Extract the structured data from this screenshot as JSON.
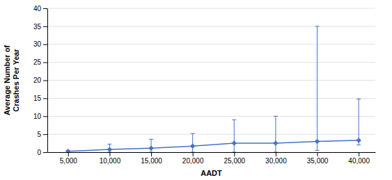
{
  "chart_data": {
    "type": "line",
    "xlabel": "AADT",
    "ylabel": "Average Number of\nCrashes Per Year",
    "x": [
      5000,
      10000,
      15000,
      20000,
      25000,
      30000,
      35000,
      40000
    ],
    "values": [
      0.25,
      0.75,
      1.1,
      1.7,
      2.5,
      2.5,
      3.0,
      3.3
    ],
    "yerr_lower": [
      0.25,
      0.75,
      1.1,
      1.7,
      2.5,
      2.5,
      2.5,
      1.3
    ],
    "yerr_upper": [
      0.25,
      1.5,
      2.5,
      3.5,
      6.5,
      7.5,
      32.0,
      11.5
    ],
    "color": "#4472C4",
    "marker": "diamond",
    "line_style": "solid",
    "xlim": [
      2500,
      42000
    ],
    "ylim": [
      0,
      40
    ],
    "xticks": [
      {
        "value": 5000,
        "label": "5,000"
      },
      {
        "value": 10000,
        "label": "10,000"
      },
      {
        "value": 15000,
        "label": "15,000"
      },
      {
        "value": 20000,
        "label": "20,000"
      },
      {
        "value": 25000,
        "label": "25,000"
      },
      {
        "value": 30000,
        "label": "30,000"
      },
      {
        "value": 35000,
        "label": "35,000"
      },
      {
        "value": 40000,
        "label": "40,000"
      }
    ],
    "yticks": [
      0,
      5,
      10,
      15,
      20,
      25,
      30,
      35,
      40
    ],
    "grid": "y"
  }
}
